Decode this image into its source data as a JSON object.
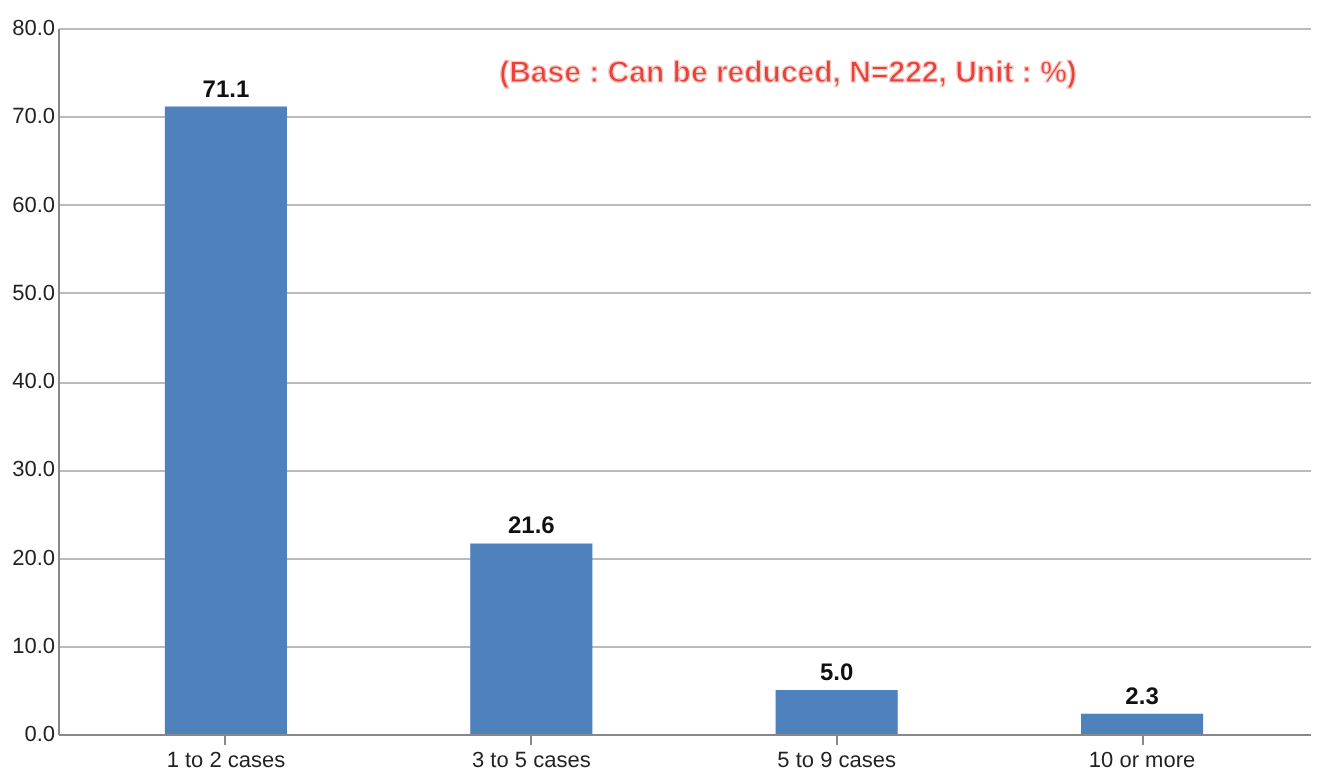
{
  "chart_data": {
    "type": "bar",
    "categories": [
      "1 to 2 cases",
      "3 to 5 cases",
      "5 to 9 cases",
      "10 or more"
    ],
    "values": [
      71.1,
      21.6,
      5.0,
      2.3
    ],
    "value_labels": [
      "71.1",
      "21.6",
      "5.0",
      "2.3"
    ],
    "color": "#4f81bd",
    "ylim": [
      0,
      80
    ],
    "yticks": [
      {
        "value": 0,
        "label": "0.0"
      },
      {
        "value": 10,
        "label": "10.0"
      },
      {
        "value": 20,
        "label": "20.0"
      },
      {
        "value": 30,
        "label": "30.0"
      },
      {
        "value": 40,
        "label": "40.0"
      },
      {
        "value": 50,
        "label": "50.0"
      },
      {
        "value": 60,
        "label": "60.0"
      },
      {
        "value": 70,
        "label": "70.0"
      },
      {
        "value": 80,
        "label": "80.0"
      }
    ],
    "grid": "y",
    "annotations": [
      "(Base : Can be reduced, N=222, Unit : %)"
    ]
  }
}
